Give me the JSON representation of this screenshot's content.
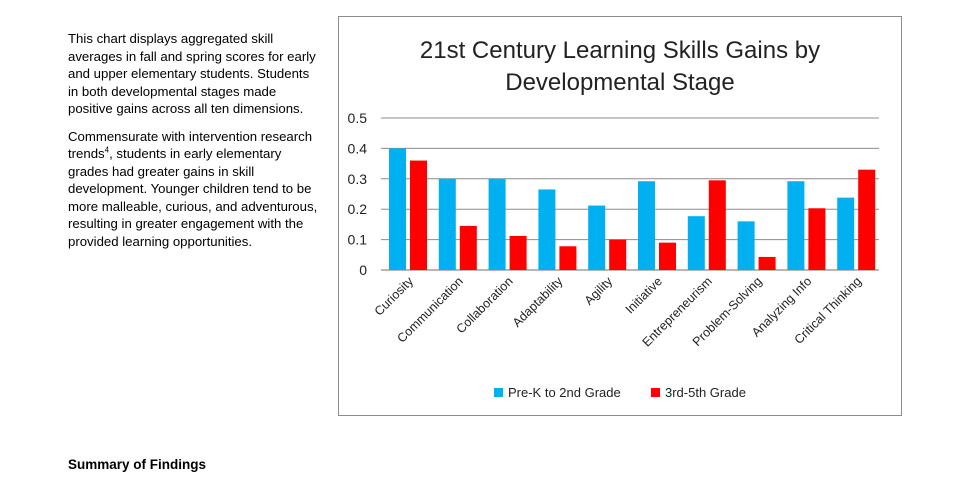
{
  "document": {
    "paragraph_1": "This chart displays aggregated skill averages in fall and spring scores for early and upper elementary students. Students in both developmental stages made positive gains across all ten dimensions.",
    "paragraph_2_before": "Commensurate with intervention research trends",
    "paragraph_2_sup": "4",
    "paragraph_2_after": ", students in early elementary grades had greater gains in skill development. Younger children tend to be more malleable, curious, and adventurous, resulting in greater engagement with the provided learning opportunities.",
    "section_heading": "Summary of Findings"
  },
  "colors": {
    "series_1": "#00b0f0",
    "series_2": "#ff0000",
    "gridline": "#8c8c8c",
    "axis": "#8c8c8c"
  },
  "chart_data": {
    "type": "bar",
    "title": [
      "21st Century Learning Skills Gains by",
      "Developmental Stage"
    ],
    "categories": [
      "Curiosity",
      "Communication",
      "Collaboration",
      "Adaptability",
      "Agility",
      "Initiative",
      "Entrepreneurism",
      "Problem-Solving",
      "Analyzing Info",
      "Critical Thinking"
    ],
    "series": [
      {
        "name": "Pre-K to 2nd Grade",
        "values": [
          0.4,
          0.3,
          0.3,
          0.265,
          0.212,
          0.292,
          0.177,
          0.16,
          0.292,
          0.238
        ]
      },
      {
        "name": "3rd-5th Grade",
        "values": [
          0.36,
          0.145,
          0.112,
          0.078,
          0.1,
          0.09,
          0.295,
          0.043,
          0.203,
          0.33
        ]
      }
    ],
    "ylim": [
      0,
      0.5
    ],
    "yticks": [
      "0",
      "0.1",
      "0.2",
      "0.3",
      "0.4",
      "0.5"
    ],
    "ytick_values": [
      0,
      0.1,
      0.2,
      0.3,
      0.4,
      0.5
    ],
    "grid": true,
    "legend_position": "bottom"
  }
}
